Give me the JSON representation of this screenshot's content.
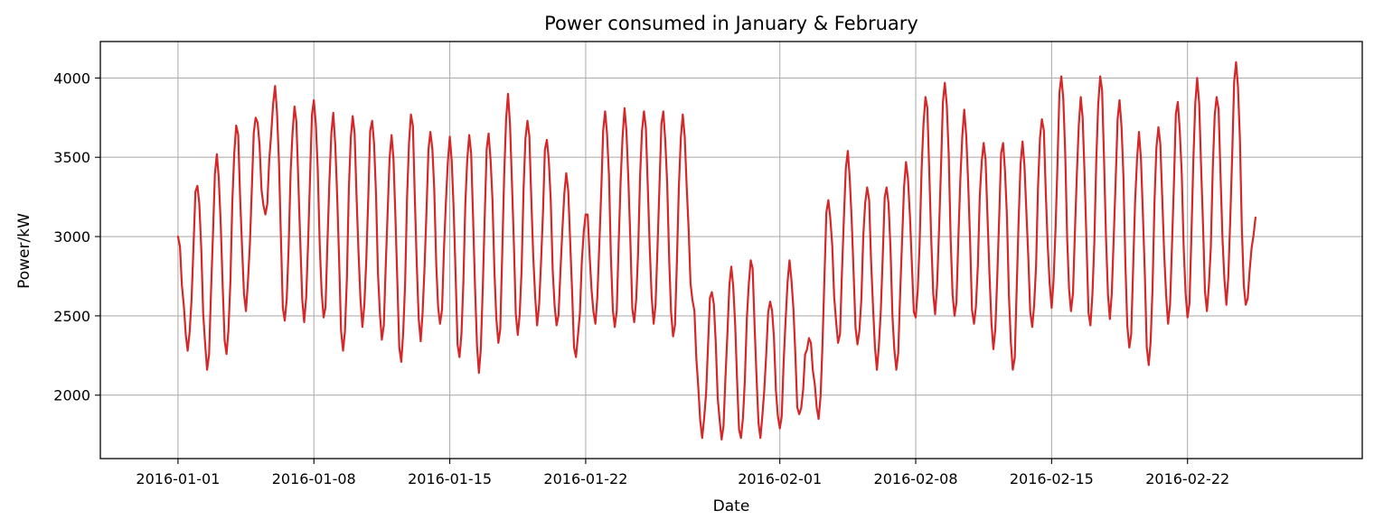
{
  "chart_data": {
    "type": "line",
    "title": "Power consumed in January & February",
    "xlabel": "Date",
    "ylabel": "Power/kW",
    "x_range": [
      "2015-12-28",
      "2016-03-02"
    ],
    "ylim": [
      1600,
      4230
    ],
    "x_ticks": [
      "2016-01-01",
      "2016-01-08",
      "2016-01-15",
      "2016-01-22",
      "2016-02-01",
      "2016-02-08",
      "2016-02-15",
      "2016-02-22"
    ],
    "y_ticks": [
      2000,
      2500,
      3000,
      3500,
      4000
    ],
    "grid": true,
    "legend": "none",
    "line_color": "#d62728",
    "series": [
      {
        "x_start": "2016-01-01",
        "x_step_days": 0.5,
        "values": [
          3000,
          2280,
          3320,
          2160,
          3520,
          2260,
          3700,
          2530,
          3750,
          3140,
          3950,
          2470,
          3820,
          2460,
          3860,
          2490,
          3780,
          2280,
          3760,
          2430,
          3730,
          2350,
          3640,
          2210,
          3770,
          2340,
          3660,
          2450,
          3630,
          2240,
          3640,
          2140,
          3650,
          2330,
          3900,
          2380,
          3730,
          2440,
          3610,
          2440,
          3400,
          2240,
          3140,
          2450,
          3790,
          2430,
          3810,
          2460,
          3790,
          2450,
          3790,
          2370,
          3770,
          2600,
          1730,
          2650,
          1720,
          2810,
          1730,
          2850,
          1730,
          2590,
          1790,
          2850,
          1880,
          2360,
          1850,
          3230,
          2330,
          3540,
          2320,
          3310,
          2160,
          3310,
          2160,
          3470,
          2490,
          3880,
          2510,
          3970,
          2500,
          3800,
          2450,
          3590,
          2290,
          3590,
          2160,
          3600,
          2430,
          3740,
          2550,
          4010,
          2530,
          3880,
          2440,
          4010,
          2480,
          3860,
          2300,
          3660,
          2190,
          3690,
          2450,
          3850,
          2490,
          4000,
          2530,
          3880,
          2570,
          4100,
          2570,
          3120
        ]
      }
    ]
  }
}
